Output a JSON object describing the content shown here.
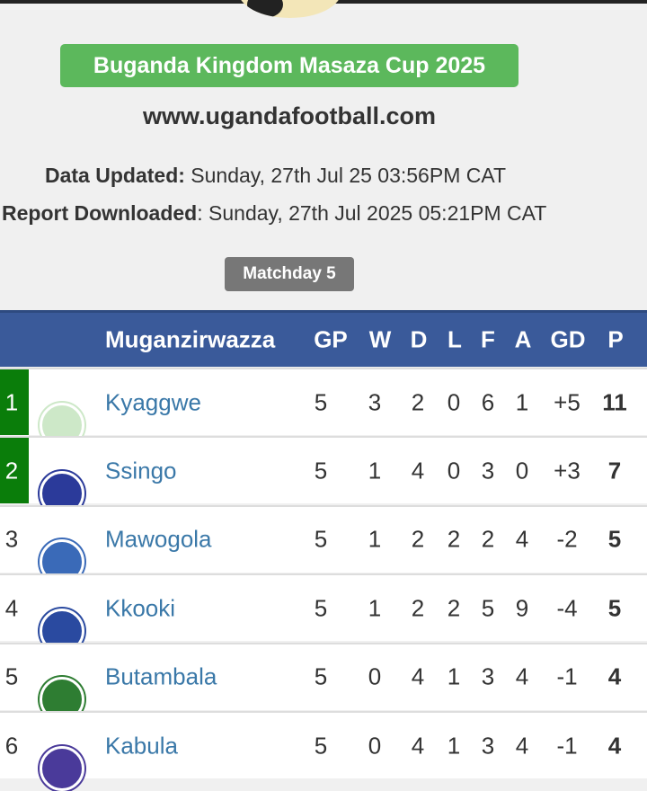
{
  "title": "Buganda Kingdom Masaza Cup 2025",
  "website": "www.ugandafootball.com",
  "data_updated": {
    "label": "Data Updated:",
    "value": " Sunday, 27th Jul 25 03:56PM CAT"
  },
  "report_downloaded": {
    "label": "Report Downloaded",
    "value": ": Sunday, 27th Jul 2025 05:21PM CAT"
  },
  "matchday": "Matchday 5",
  "colors": {
    "banner": "#5cb85c",
    "header": "#3a5a9a",
    "qualify": "#0a7d0a",
    "team_link": "#3a78a8"
  },
  "table": {
    "headers": [
      "Muganzirwazza",
      "GP",
      "W",
      "D",
      "L",
      "F",
      "A",
      "GD",
      "P"
    ],
    "rows": [
      {
        "rank": "1",
        "team": "Kyaggwe",
        "gp": "5",
        "w": "3",
        "d": "2",
        "l": "0",
        "f": "6",
        "a": "1",
        "gd": "+5",
        "p": "11",
        "qualified": true,
        "crest": "#cde8c8"
      },
      {
        "rank": "2",
        "team": "Ssingo",
        "gp": "5",
        "w": "1",
        "d": "4",
        "l": "0",
        "f": "3",
        "a": "0",
        "gd": "+3",
        "p": "7",
        "qualified": true,
        "crest": "#2b3a9a"
      },
      {
        "rank": "3",
        "team": "Mawogola",
        "gp": "5",
        "w": "1",
        "d": "2",
        "l": "2",
        "f": "2",
        "a": "4",
        "gd": "-2",
        "p": "5",
        "qualified": false,
        "crest": "#3a6ab8"
      },
      {
        "rank": "4",
        "team": "Kkooki",
        "gp": "5",
        "w": "1",
        "d": "2",
        "l": "2",
        "f": "5",
        "a": "9",
        "gd": "-4",
        "p": "5",
        "qualified": false,
        "crest": "#2a4aa0"
      },
      {
        "rank": "5",
        "team": "Butambala",
        "gp": "5",
        "w": "0",
        "d": "4",
        "l": "1",
        "f": "3",
        "a": "4",
        "gd": "-1",
        "p": "4",
        "qualified": false,
        "crest": "#2e7d32"
      },
      {
        "rank": "6",
        "team": "Kabula",
        "gp": "5",
        "w": "0",
        "d": "4",
        "l": "1",
        "f": "3",
        "a": "4",
        "gd": "-1",
        "p": "4",
        "qualified": false,
        "crest": "#4a3a9a"
      }
    ]
  }
}
